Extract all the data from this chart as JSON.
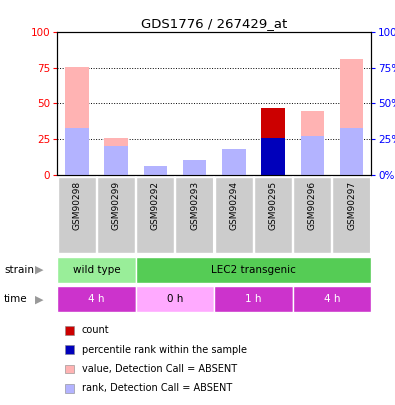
{
  "title": "GDS1776 / 267429_at",
  "samples": [
    "GSM90298",
    "GSM90299",
    "GSM90292",
    "GSM90293",
    "GSM90294",
    "GSM90295",
    "GSM90296",
    "GSM90297"
  ],
  "count_values": [
    0,
    0,
    0,
    0,
    0,
    47,
    0,
    0
  ],
  "percentile_rank": [
    0,
    0,
    0,
    0,
    0,
    26,
    0,
    0
  ],
  "value_absent": [
    76,
    26,
    0,
    10,
    18,
    26,
    45,
    81
  ],
  "rank_absent": [
    33,
    20,
    6,
    10,
    18,
    0,
    27,
    33
  ],
  "ylim": [
    0,
    100
  ],
  "left_yticks": [
    0,
    25,
    50,
    75,
    100
  ],
  "right_yticks": [
    0,
    25,
    50,
    75,
    100
  ],
  "count_color": "#cc0000",
  "percentile_color": "#0000bb",
  "value_absent_color": "#ffb3b3",
  "rank_absent_color": "#b3b3ff",
  "strain_segments": [
    {
      "label": "wild type",
      "start": 0,
      "end": 2,
      "color": "#99ee99"
    },
    {
      "label": "LEC2 transgenic",
      "start": 2,
      "end": 8,
      "color": "#55cc55"
    }
  ],
  "time_segments": [
    {
      "label": "4 h",
      "start": 0,
      "end": 2,
      "color": "#cc33cc"
    },
    {
      "label": "0 h",
      "start": 2,
      "end": 4,
      "color": "#ffaaff"
    },
    {
      "label": "1 h",
      "start": 4,
      "end": 6,
      "color": "#cc33cc"
    },
    {
      "label": "4 h",
      "start": 6,
      "end": 8,
      "color": "#cc33cc"
    }
  ],
  "legend_items": [
    {
      "label": "count",
      "color": "#cc0000"
    },
    {
      "label": "percentile rank within the sample",
      "color": "#0000bb"
    },
    {
      "label": "value, Detection Call = ABSENT",
      "color": "#ffb3b3"
    },
    {
      "label": "rank, Detection Call = ABSENT",
      "color": "#b3b3ff"
    }
  ],
  "bg_color": "#ffffff",
  "sample_area_color": "#cccccc",
  "bar_width": 0.6
}
